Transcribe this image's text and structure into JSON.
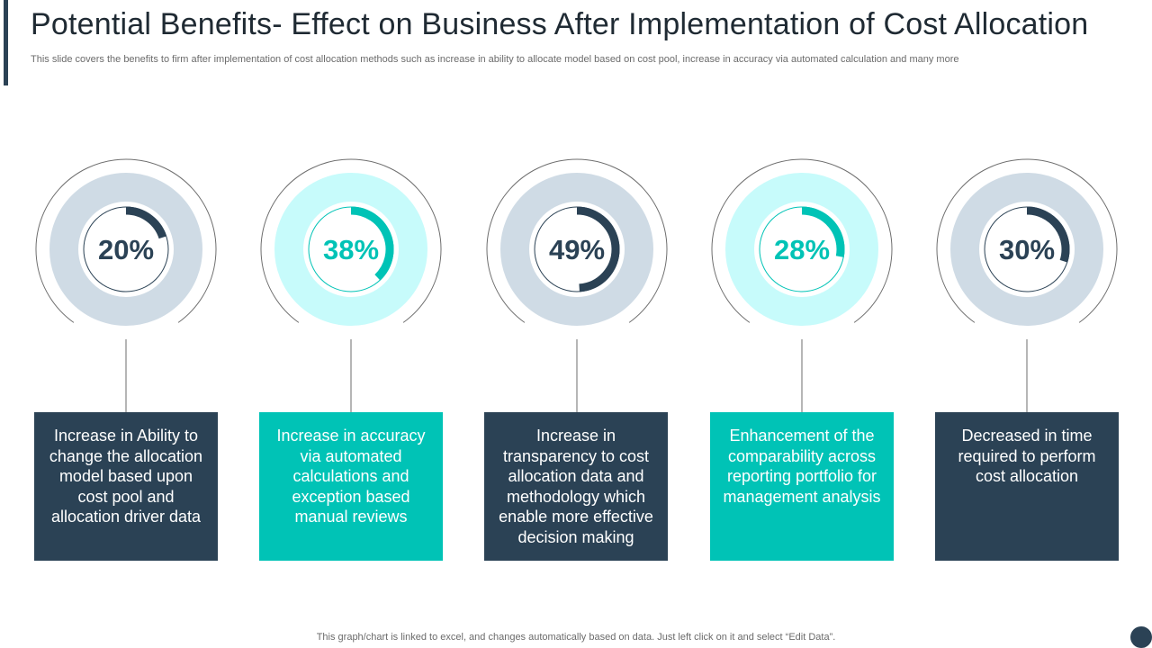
{
  "header": {
    "title": "Potential Benefits- Effect on Business After Implementation of Cost Allocation",
    "subtitle": "This slide covers the benefits to firm after implementation of cost allocation methods such as increase in ability to allocate model based on cost pool, increase in accuracy via automated calculation and many more"
  },
  "chart_data": {
    "type": "pie",
    "values": [
      20,
      38,
      49,
      28,
      30
    ],
    "labels": [
      "20%",
      "38%",
      "49%",
      "28%",
      "30%"
    ],
    "descriptions": [
      "Increase in Ability to change the allocation model based upon cost pool and allocation driver data",
      "Increase in accuracy via automated calculations and exception based manual reviews",
      "Increase in transparency to cost allocation data and methodology which enable more effective decision making",
      "Enhancement of the comparability across reporting portfolio for management analysis",
      "Decreased in time required to perform cost allocation"
    ],
    "themes": [
      "dark",
      "teal",
      "dark",
      "teal",
      "dark"
    ],
    "max": 100
  },
  "colors": {
    "dark": "#2b4255",
    "teal": "#00c3b6",
    "ring_dark": "#cfdbe5",
    "ring_teal": "#c7fbfb",
    "outline": "#6e6e6e"
  },
  "footer": {
    "note": "This graph/chart is linked to excel,  and changes automatically based on data. Just left click on it and select “Edit Data”."
  }
}
